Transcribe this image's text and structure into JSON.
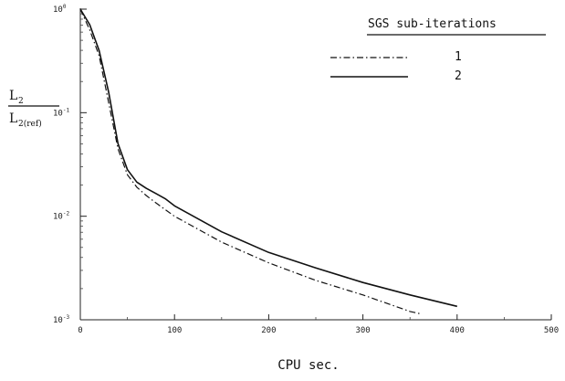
{
  "chart_data": {
    "type": "line",
    "xlabel": "CPU sec.",
    "ylabel": {
      "numerator": "L",
      "numerator_sub": "2",
      "denominator": "L",
      "denominator_sub": "2(ref)"
    },
    "xlim": [
      0,
      500
    ],
    "ylim_log10": [
      -3,
      0
    ],
    "yscale": "log",
    "grid": false,
    "legend_title": "SGS sub-iterations",
    "legend_position": "top-right",
    "x_ticks": [
      0,
      100,
      200,
      300,
      400,
      500
    ],
    "x_tick_labels": [
      "0",
      "100",
      "200",
      "300",
      "400",
      "500"
    ],
    "y_ticks_log10": [
      0,
      -1,
      -2,
      -3
    ],
    "y_tick_labels": [
      {
        "base": "10",
        "exp": "0"
      },
      {
        "base": "10",
        "exp": "-1"
      },
      {
        "base": "10",
        "exp": "-2"
      },
      {
        "base": "10",
        "exp": "-3"
      }
    ],
    "series": [
      {
        "name": "1",
        "style": "dash-dot",
        "points_log10": [
          [
            0,
            0
          ],
          [
            10,
            -0.2
          ],
          [
            20,
            -0.45
          ],
          [
            30,
            -0.9
          ],
          [
            40,
            -1.35
          ],
          [
            50,
            -1.6
          ],
          [
            60,
            -1.72
          ],
          [
            70,
            -1.8
          ],
          [
            80,
            -1.87
          ],
          [
            100,
            -2.0
          ],
          [
            150,
            -2.25
          ],
          [
            200,
            -2.45
          ],
          [
            250,
            -2.62
          ],
          [
            300,
            -2.76
          ],
          [
            350,
            -2.92
          ],
          [
            360,
            -2.94
          ]
        ]
      },
      {
        "name": "2",
        "style": "solid",
        "points_log10": [
          [
            0,
            0
          ],
          [
            10,
            -0.15
          ],
          [
            20,
            -0.4
          ],
          [
            30,
            -0.8
          ],
          [
            40,
            -1.3
          ],
          [
            50,
            -1.55
          ],
          [
            60,
            -1.67
          ],
          [
            70,
            -1.73
          ],
          [
            80,
            -1.78
          ],
          [
            90,
            -1.83
          ],
          [
            100,
            -1.9
          ],
          [
            150,
            -2.15
          ],
          [
            200,
            -2.35
          ],
          [
            250,
            -2.5
          ],
          [
            300,
            -2.64
          ],
          [
            350,
            -2.76
          ],
          [
            400,
            -2.87
          ]
        ]
      }
    ]
  }
}
